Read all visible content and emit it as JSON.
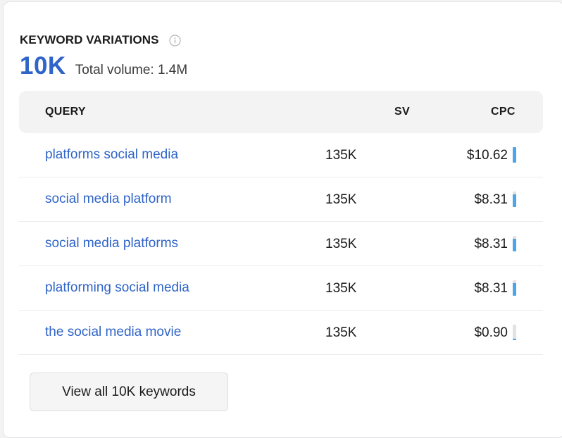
{
  "widget": {
    "title": "KEYWORD VARIATIONS",
    "info_icon": "info-circle-icon",
    "keyword_count": "10K",
    "total_volume": "Total volume: 1.4M"
  },
  "table": {
    "columns": {
      "query": "QUERY",
      "sv": "SV",
      "cpc": "CPC"
    },
    "rows": [
      {
        "query": "platforms social media",
        "sv": "135K",
        "cpc": "$10.62",
        "cpc_level": 1.0
      },
      {
        "query": "social media platform",
        "sv": "135K",
        "cpc": "$8.31",
        "cpc_level": 0.8
      },
      {
        "query": "social media platforms",
        "sv": "135K",
        "cpc": "$8.31",
        "cpc_level": 0.8
      },
      {
        "query": "platforming social media",
        "sv": "135K",
        "cpc": "$8.31",
        "cpc_level": 0.8
      },
      {
        "query": "the social media movie",
        "sv": "135K",
        "cpc": "$0.90",
        "cpc_level": 0.1
      }
    ]
  },
  "footer": {
    "view_all_label": "View all 10K keywords"
  },
  "colors": {
    "accent": "#2f64c8",
    "bar_fill": "#4aa6e8",
    "bar_track": "#e2e2e6"
  }
}
